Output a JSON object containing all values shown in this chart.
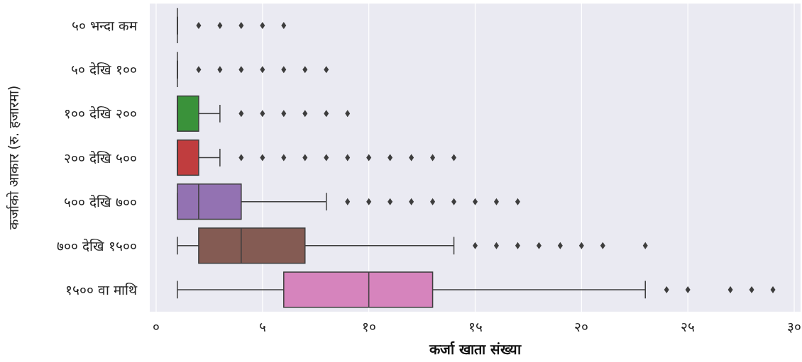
{
  "chart_data": {
    "type": "box",
    "orientation": "horizontal",
    "xlabel": "**कर्जा खाता संख्या**",
    "ylabel": "कर्जाको आकार (रु. हजारमा)",
    "categories": [
      "५० भन्दा कम",
      "५० देखि १००",
      "१०० देखि २००",
      "२०० देखि ५००",
      "५०० देखि ७००",
      "७०० देखि १५००",
      "१५०० वा माथि"
    ],
    "boxes": [
      {
        "low": 1,
        "q1": 1,
        "median": 1,
        "q3": 1,
        "high": 1,
        "outliers": [
          2,
          3,
          4,
          5,
          6
        ]
      },
      {
        "low": 1,
        "q1": 1,
        "median": 1,
        "q3": 1,
        "high": 1,
        "outliers": [
          2,
          3,
          4,
          5,
          6,
          7,
          8
        ]
      },
      {
        "low": 1,
        "q1": 1,
        "median": 1,
        "q3": 2,
        "high": 3,
        "outliers": [
          4,
          5,
          6,
          7,
          8,
          9
        ]
      },
      {
        "low": 1,
        "q1": 1,
        "median": 1,
        "q3": 2,
        "high": 3,
        "outliers": [
          4,
          5,
          6,
          7,
          8,
          9,
          10,
          11,
          12,
          13,
          14
        ]
      },
      {
        "low": 1,
        "q1": 1,
        "median": 2,
        "q3": 4,
        "high": 8,
        "outliers": [
          9,
          10,
          11,
          12,
          13,
          14,
          15,
          16,
          17
        ]
      },
      {
        "low": 1,
        "q1": 2,
        "median": 4,
        "q3": 7,
        "high": 14,
        "outliers": [
          15,
          16,
          17,
          18,
          19,
          20,
          21,
          23
        ]
      },
      {
        "low": 1,
        "q1": 6,
        "median": 10,
        "q3": 13,
        "high": 23,
        "outliers": [
          24,
          25,
          27,
          28,
          29
        ]
      }
    ],
    "colors": [
      null,
      null,
      "#3a923a",
      "#c03d3e",
      "#9372b2",
      "#845b53",
      "#d684bd"
    ],
    "xlim": [
      -0.3,
      30.3
    ],
    "xticks": [
      {
        "value": 0,
        "label": "०"
      },
      {
        "value": 5,
        "label": "५"
      },
      {
        "value": 10,
        "label": "१०"
      },
      {
        "value": 15,
        "label": "१५"
      },
      {
        "value": 20,
        "label": "२०"
      },
      {
        "value": 25,
        "label": "२५"
      },
      {
        "value": 30,
        "label": "३०"
      }
    ],
    "grid": "x",
    "marker": "diamond"
  }
}
